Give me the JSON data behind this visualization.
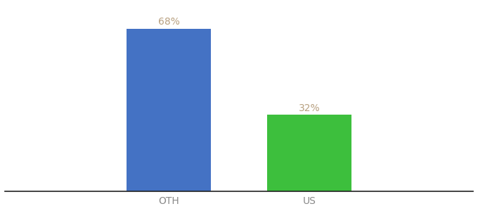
{
  "categories": [
    "OTH",
    "US"
  ],
  "values": [
    68,
    32
  ],
  "bar_colors": [
    "#4472c4",
    "#3dbf3d"
  ],
  "label_color": "#b8a080",
  "label_format": [
    "68%",
    "32%"
  ],
  "background_color": "#ffffff",
  "ylim": [
    0,
    78
  ],
  "bar_width": 0.18,
  "x_positions": [
    0.35,
    0.65
  ],
  "xlim": [
    0.0,
    1.0
  ],
  "xlabel_fontsize": 10,
  "label_fontsize": 10,
  "tick_label_color": "#888888"
}
